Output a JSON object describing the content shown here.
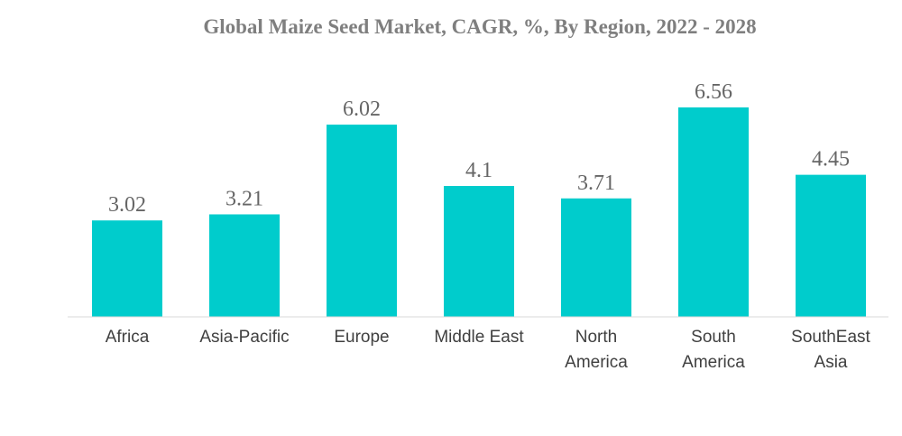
{
  "chart_data": {
    "type": "bar",
    "title": "Global Maize Seed Market, CAGR, %, By Region, 2022 - 2028",
    "categories": [
      [
        "Africa"
      ],
      [
        "Asia-Pacific"
      ],
      [
        "Europe"
      ],
      [
        "Middle East"
      ],
      [
        "North",
        "America"
      ],
      [
        "South",
        "America"
      ],
      [
        "SouthEast",
        "Asia"
      ]
    ],
    "values": [
      3.02,
      3.21,
      6.02,
      4.1,
      3.71,
      6.56,
      4.45
    ],
    "value_labels": [
      "3.02",
      "3.21",
      "6.02",
      "4.1",
      "3.71",
      "6.56",
      "4.45"
    ],
    "xlabel": "",
    "ylabel": "",
    "ylim": [
      0,
      6.56
    ],
    "grid": false,
    "legend": "none",
    "colors": {
      "bar": "#00cccc",
      "axis": "#d9d9d9",
      "title": "#7f7f7f",
      "value_label": "#666666",
      "category_label": "#404040"
    }
  }
}
